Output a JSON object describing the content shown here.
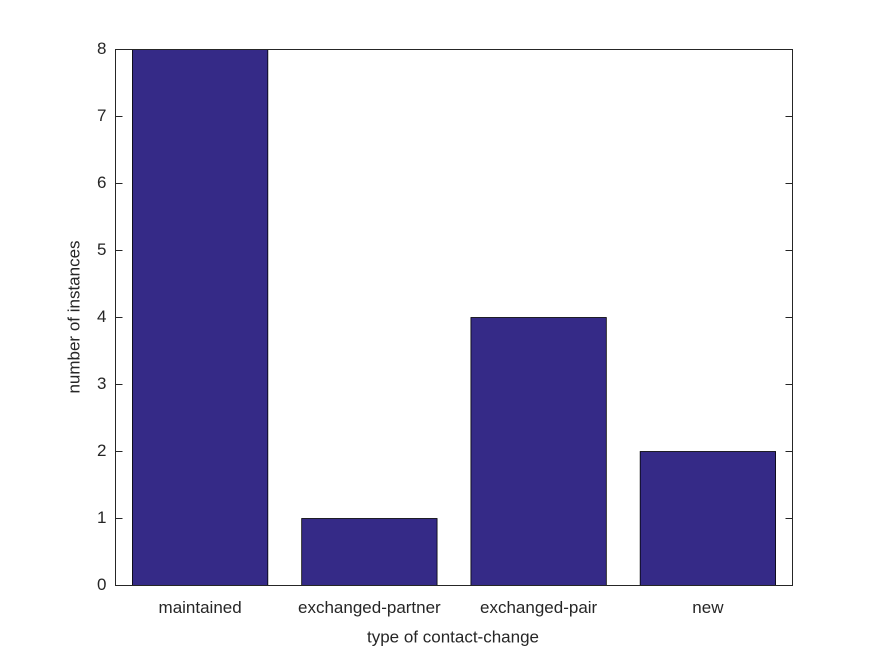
{
  "chart_data": {
    "type": "bar",
    "xlabel": "type of contact-change",
    "ylabel": "number of instances",
    "categories": [
      "maintained",
      "exchanged-partner",
      "exchanged-pair",
      "new"
    ],
    "values": [
      8,
      1,
      4,
      2
    ],
    "color": "#352a87",
    "ylim": [
      0,
      8
    ],
    "yticks": [
      0,
      1,
      2,
      3,
      4,
      5,
      6,
      7,
      8
    ]
  }
}
